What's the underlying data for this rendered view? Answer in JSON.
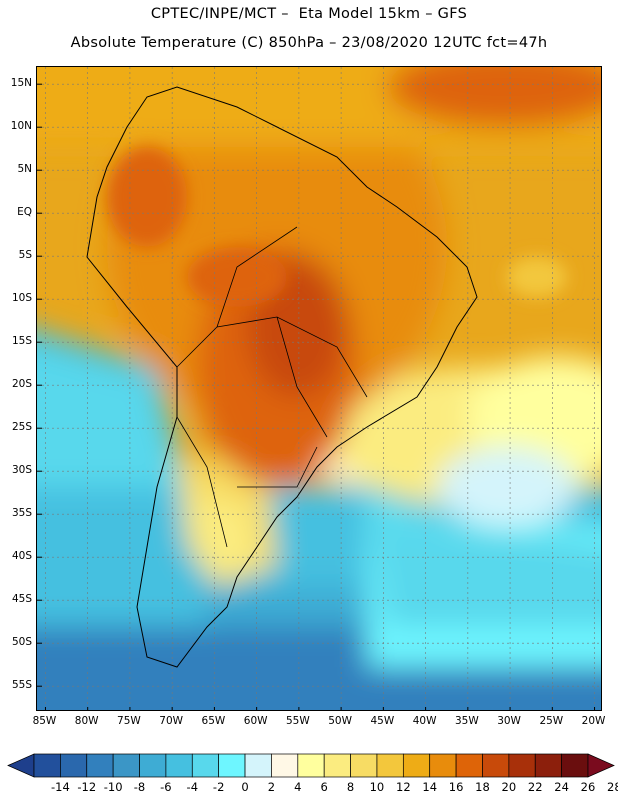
{
  "header": {
    "line1": "CPTEC/INPE/MCT –  Eta Model 15km – GFS",
    "line2": "Absolute Temperature (C) 850hPa – 23/08/2020 12UTC fct=47h"
  },
  "map": {
    "lon_range": [
      -86,
      -19
    ],
    "lat_range": [
      -58,
      17
    ],
    "lat_ticks": [
      {
        "value": 15,
        "label": "15N"
      },
      {
        "value": 10,
        "label": "10N"
      },
      {
        "value": 5,
        "label": "5N"
      },
      {
        "value": 0,
        "label": "EQ"
      },
      {
        "value": -5,
        "label": "5S"
      },
      {
        "value": -10,
        "label": "10S"
      },
      {
        "value": -15,
        "label": "15S"
      },
      {
        "value": -20,
        "label": "20S"
      },
      {
        "value": -25,
        "label": "25S"
      },
      {
        "value": -30,
        "label": "30S"
      },
      {
        "value": -35,
        "label": "35S"
      },
      {
        "value": -40,
        "label": "40S"
      },
      {
        "value": -45,
        "label": "45S"
      },
      {
        "value": -50,
        "label": "50S"
      },
      {
        "value": -55,
        "label": "55S"
      }
    ],
    "lon_ticks": [
      {
        "value": -85,
        "label": "85W"
      },
      {
        "value": -80,
        "label": "80W"
      },
      {
        "value": -75,
        "label": "75W"
      },
      {
        "value": -70,
        "label": "70W"
      },
      {
        "value": -65,
        "label": "65W"
      },
      {
        "value": -60,
        "label": "60W"
      },
      {
        "value": -55,
        "label": "55W"
      },
      {
        "value": -50,
        "label": "50W"
      },
      {
        "value": -45,
        "label": "45W"
      },
      {
        "value": -40,
        "label": "40W"
      },
      {
        "value": -35,
        "label": "35W"
      },
      {
        "value": -30,
        "label": "30W"
      },
      {
        "value": -25,
        "label": "25W"
      },
      {
        "value": -20,
        "label": "20W"
      }
    ]
  },
  "colorbar": {
    "labels": [
      "-14",
      "-12",
      "-10",
      "-8",
      "-6",
      "-4",
      "-2",
      "0",
      "2",
      "4",
      "6",
      "8",
      "10",
      "12",
      "14",
      "16",
      "18",
      "20",
      "22",
      "24",
      "26",
      "28"
    ],
    "colors": [
      "#1e3f8c",
      "#22509c",
      "#2a68ad",
      "#3280bd",
      "#3b96c6",
      "#3eacd4",
      "#45c0e0",
      "#58d8ec",
      "#6ef6ff",
      "#d4f4fb",
      "#fff8e6",
      "#ffff9e",
      "#fbec80",
      "#f7dc64",
      "#f3c73c",
      "#eeac16",
      "#e88c0c",
      "#de6408",
      "#c84a0a",
      "#a8300a",
      "#8c1f0c",
      "#6a0e0e",
      "#7a0b1e"
    ]
  }
}
